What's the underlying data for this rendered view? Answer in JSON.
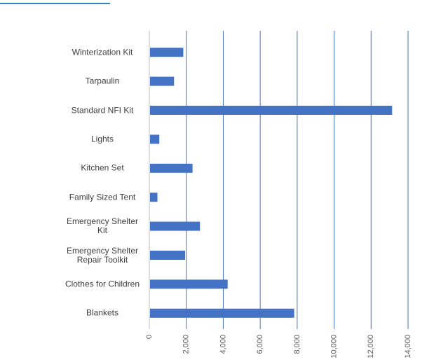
{
  "chart_data": {
    "type": "hbar",
    "categories": [
      "Winterization Kit",
      "Tarpaulin",
      "Standard NFI Kit",
      "Lights",
      "Kitchen Set",
      "Family Sized Tent",
      "Emergency Shelter Kit",
      "Emergency Shelter Repair Toolkit",
      "Clothes for Children",
      "Blankets"
    ],
    "values": [
      1800,
      1300,
      13100,
      500,
      2300,
      400,
      2700,
      1900,
      4200,
      7800
    ],
    "color": "#4472c4",
    "xlim": [
      0,
      14000
    ],
    "xticks": [
      0,
      {
        "value": 2000,
        "label": "2,000"
      },
      {
        "value": 4000,
        "label": "4,000"
      },
      {
        "value": 6000,
        "label": "6,000"
      },
      {
        "value": 8000,
        "label": "8,000"
      },
      {
        "value": 10000,
        "label": "10,000"
      },
      {
        "value": 12000,
        "label": "12,000"
      },
      {
        "value": 14000,
        "label": "14,000"
      }
    ],
    "grid": true
  }
}
